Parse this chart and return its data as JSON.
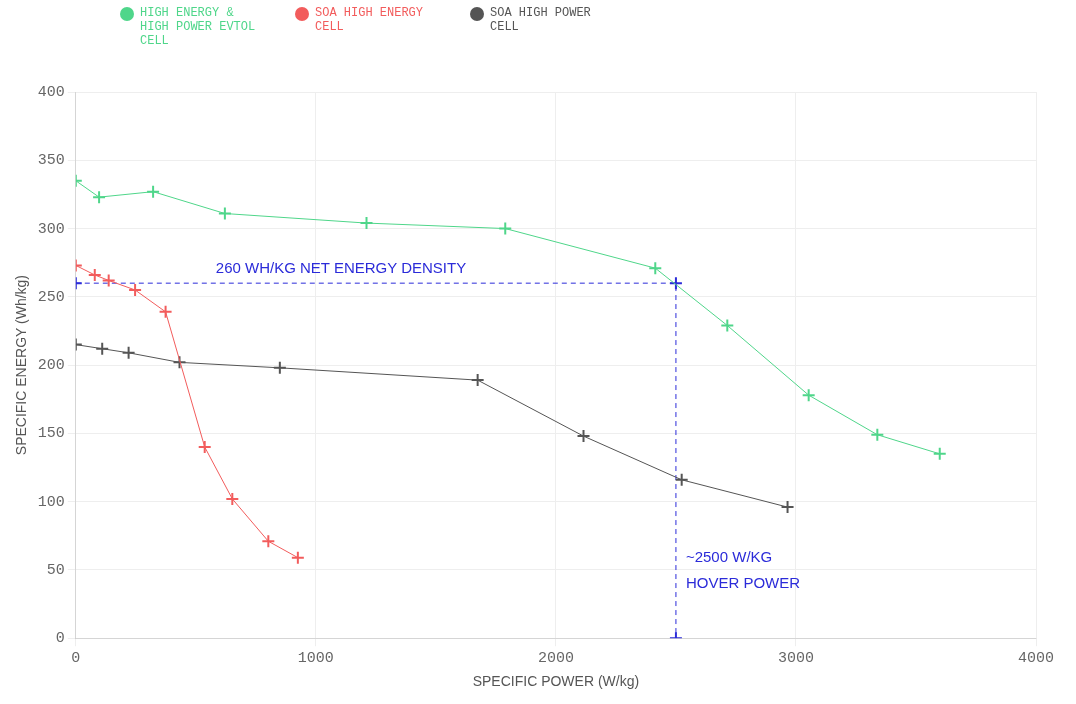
{
  "chart_data": {
    "type": "line",
    "xlabel": "SPECIFIC POWER (W/kg)",
    "ylabel": "SPECIFIC ENERGY (Wh/kg)",
    "xlim": [
      0,
      4000
    ],
    "xticks": [
      0,
      1000,
      2000,
      3000,
      4000
    ],
    "ylim": [
      0,
      400
    ],
    "yticks": [
      0,
      50,
      100,
      150,
      200,
      250,
      300,
      350,
      400
    ],
    "grid": true,
    "legend": "top left",
    "marker": "cross",
    "series": [
      {
        "name": "HIGH ENERGY & HIGH POWER EVTOL CELL",
        "color": "#4fd68a",
        "x": [
          0,
          97,
          322,
          621,
          1211,
          1789,
          2414,
          2714,
          3053,
          3339,
          3599
        ],
        "values": [
          335,
          323,
          327,
          311,
          304,
          300,
          271,
          229,
          178,
          149,
          135
        ]
      },
      {
        "name": "SOA HIGH ENERGY CELL",
        "color": "#f25c5c",
        "x": [
          0,
          79,
          137,
          247,
          374,
          537,
          652,
          802,
          925
        ],
        "values": [
          273,
          266,
          262,
          255,
          239,
          140,
          102,
          71,
          59
        ]
      },
      {
        "name": "SOA HIGH POWER CELL",
        "color": "#555555",
        "x": [
          0,
          110,
          220,
          432,
          850,
          1674,
          2115,
          2524,
          2965
        ],
        "values": [
          215,
          212,
          209,
          202,
          198,
          189,
          148,
          116,
          96
        ]
      },
      {
        "color": "#2b2bd9",
        "line_style": "dashed",
        "x": [
          0,
          2500,
          2500
        ],
        "values": [
          260,
          260,
          0
        ]
      }
    ],
    "annotations": [
      "260 WH/KG NET ENERGY DENSITY",
      "~2500 W/KG",
      "HOVER POWER"
    ]
  }
}
